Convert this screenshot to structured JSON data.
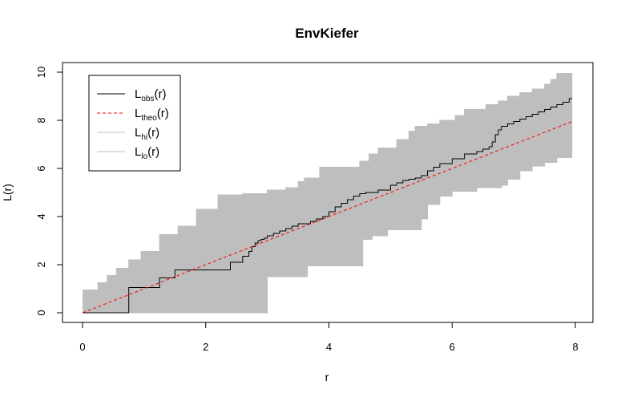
{
  "chart_data": {
    "type": "line",
    "title": "EnvKiefer",
    "xlabel": "r",
    "ylabel": "L(r)",
    "xlim": [
      0,
      8
    ],
    "ylim": [
      0,
      10
    ],
    "x_ticks": [
      "0",
      "2",
      "4",
      "6",
      "8"
    ],
    "y_ticks": [
      "0",
      "2",
      "4",
      "6",
      "8",
      "10"
    ],
    "legend_position": "top-left",
    "colors": {
      "obs": "#000000",
      "theo": "#ff0000",
      "band": "#bebebe"
    },
    "legend": [
      {
        "main": "L",
        "sub": "obs",
        "suffix": "(r)",
        "style": "solid",
        "color": "#000000"
      },
      {
        "main": "L",
        "sub": "theo",
        "suffix": "(r)",
        "style": "dashed",
        "color": "#ff0000"
      },
      {
        "main": "L",
        "sub": "hi",
        "suffix": "(r)",
        "style": "solid",
        "color": "#bebebe"
      },
      {
        "main": "L",
        "sub": "lo",
        "suffix": "(r)",
        "style": "solid",
        "color": "#bebebe"
      }
    ],
    "series": [
      {
        "name": "obs",
        "x": [
          0,
          0.75,
          0.75,
          1.25,
          1.25,
          1.5,
          1.5,
          2.4,
          2.4,
          2.6,
          2.6,
          2.7,
          2.7,
          2.75,
          2.75,
          2.8,
          2.8,
          2.85,
          2.85,
          2.9,
          2.9,
          2.95,
          2.95,
          3.0,
          3.0,
          3.1,
          3.1,
          3.2,
          3.2,
          3.3,
          3.3,
          3.4,
          3.4,
          3.5,
          3.5,
          3.7,
          3.7,
          3.8,
          3.8,
          3.9,
          3.9,
          4.0,
          4.0,
          4.1,
          4.1,
          4.2,
          4.2,
          4.3,
          4.3,
          4.4,
          4.4,
          4.5,
          4.5,
          4.6,
          4.6,
          4.8,
          4.8,
          5.0,
          5.0,
          5.1,
          5.1,
          5.2,
          5.2,
          5.3,
          5.3,
          5.4,
          5.4,
          5.5,
          5.5,
          5.6,
          5.6,
          5.7,
          5.7,
          5.8,
          5.8,
          6.0,
          6.0,
          6.2,
          6.2,
          6.4,
          6.4,
          6.5,
          6.5,
          6.6,
          6.6,
          6.65,
          6.65,
          6.7,
          6.7,
          6.75,
          6.75,
          6.8,
          6.8,
          6.9,
          6.9,
          7.0,
          7.0,
          7.1,
          7.1,
          7.2,
          7.2,
          7.3,
          7.3,
          7.4,
          7.4,
          7.5,
          7.5,
          7.6,
          7.6,
          7.7,
          7.7,
          7.8,
          7.8,
          7.9,
          7.9,
          7.95
        ],
        "y": [
          0,
          0,
          1.05,
          1.05,
          1.45,
          1.45,
          1.78,
          1.78,
          2.1,
          2.1,
          2.35,
          2.35,
          2.55,
          2.55,
          2.75,
          2.75,
          2.9,
          2.9,
          3.0,
          3.0,
          3.05,
          3.05,
          3.1,
          3.1,
          3.2,
          3.2,
          3.3,
          3.3,
          3.4,
          3.4,
          3.5,
          3.5,
          3.6,
          3.6,
          3.7,
          3.7,
          3.8,
          3.8,
          3.9,
          3.9,
          4.0,
          4.0,
          4.2,
          4.2,
          4.4,
          4.4,
          4.55,
          4.55,
          4.7,
          4.7,
          4.85,
          4.85,
          4.95,
          4.95,
          5.0,
          5.0,
          5.1,
          5.1,
          5.3,
          5.3,
          5.4,
          5.4,
          5.5,
          5.5,
          5.55,
          5.55,
          5.6,
          5.6,
          5.7,
          5.7,
          5.9,
          5.9,
          6.05,
          6.05,
          6.2,
          6.2,
          6.4,
          6.4,
          6.6,
          6.6,
          6.7,
          6.7,
          6.8,
          6.8,
          6.9,
          6.9,
          7.1,
          7.1,
          7.4,
          7.4,
          7.6,
          7.6,
          7.75,
          7.75,
          7.85,
          7.85,
          7.95,
          7.95,
          8.05,
          8.05,
          8.15,
          8.15,
          8.25,
          8.25,
          8.35,
          8.35,
          8.45,
          8.45,
          8.55,
          8.55,
          8.65,
          8.65,
          8.75,
          8.75,
          8.9,
          8.9
        ]
      },
      {
        "name": "theo",
        "x": [
          0,
          7.95
        ],
        "y": [
          0,
          7.95
        ]
      },
      {
        "name": "hi",
        "x": [
          0,
          0.25,
          0.25,
          0.4,
          0.4,
          0.55,
          0.55,
          0.75,
          0.75,
          0.95,
          0.95,
          1.25,
          1.25,
          1.55,
          1.55,
          1.85,
          1.85,
          2.2,
          2.2,
          2.6,
          2.6,
          3.0,
          3.0,
          3.3,
          3.3,
          3.5,
          3.5,
          3.6,
          3.6,
          3.85,
          3.85,
          4.5,
          4.5,
          4.65,
          4.65,
          4.8,
          4.8,
          5.1,
          5.1,
          5.3,
          5.3,
          5.4,
          5.4,
          5.6,
          5.6,
          5.8,
          5.8,
          6.05,
          6.05,
          6.2,
          6.2,
          6.55,
          6.55,
          6.75,
          6.75,
          6.9,
          6.9,
          7.1,
          7.1,
          7.3,
          7.3,
          7.5,
          7.5,
          7.6,
          7.6,
          7.7,
          7.7,
          7.8,
          7.8,
          7.95
        ],
        "y": [
          0.95,
          0.95,
          1.25,
          1.25,
          1.55,
          1.55,
          1.85,
          1.85,
          2.2,
          2.2,
          2.55,
          2.55,
          3.25,
          3.25,
          3.6,
          3.6,
          4.3,
          4.3,
          4.9,
          4.9,
          4.95,
          4.95,
          5.1,
          5.1,
          5.2,
          5.2,
          5.45,
          5.45,
          5.6,
          5.6,
          6.05,
          6.05,
          6.3,
          6.3,
          6.6,
          6.6,
          6.85,
          6.85,
          7.2,
          7.2,
          7.55,
          7.55,
          7.75,
          7.75,
          7.85,
          7.85,
          8.0,
          8.0,
          8.2,
          8.2,
          8.45,
          8.45,
          8.65,
          8.65,
          8.8,
          8.8,
          9.0,
          9.0,
          9.15,
          9.15,
          9.3,
          9.3,
          9.5,
          9.5,
          9.7,
          9.7,
          9.95,
          9.95,
          9.95,
          9.95
        ]
      },
      {
        "name": "lo",
        "x": [
          0,
          3.0,
          3.0,
          3.65,
          3.65,
          4.55,
          4.55,
          4.7,
          4.7,
          4.95,
          4.95,
          5.5,
          5.5,
          5.6,
          5.6,
          5.8,
          5.8,
          6.0,
          6.0,
          6.4,
          6.4,
          6.8,
          6.8,
          6.9,
          6.9,
          7.1,
          7.1,
          7.3,
          7.3,
          7.5,
          7.5,
          7.7,
          7.7,
          7.95
        ],
        "y": [
          0,
          0,
          1.5,
          1.5,
          1.95,
          1.95,
          3.05,
          3.05,
          3.2,
          3.2,
          3.45,
          3.45,
          3.9,
          3.9,
          4.5,
          4.5,
          4.85,
          4.85,
          5.05,
          5.05,
          5.2,
          5.2,
          5.3,
          5.3,
          5.55,
          5.55,
          5.9,
          5.9,
          6.1,
          6.1,
          6.25,
          6.25,
          6.45,
          6.45
        ]
      }
    ]
  }
}
